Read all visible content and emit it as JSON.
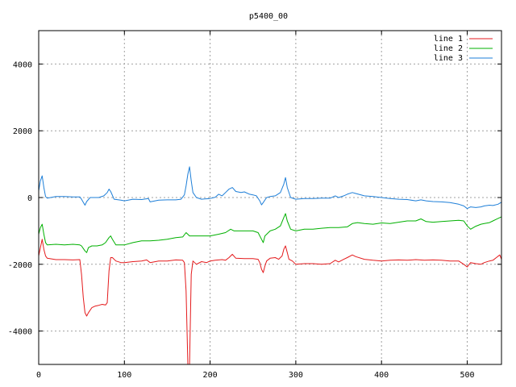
{
  "chart_data": {
    "type": "line",
    "title": "p5400_00",
    "xlabel": "",
    "ylabel": "",
    "xlim": [
      0,
      540
    ],
    "ylim": [
      -5000,
      5000
    ],
    "xticks": [
      0,
      100,
      200,
      300,
      400,
      500
    ],
    "yticks": [
      -4000,
      -2000,
      0,
      2000,
      4000
    ],
    "grid": true,
    "legend_position": "top-right",
    "series": [
      {
        "name": "line 1",
        "color": "#e41a1c",
        "points": [
          [
            0,
            -1750
          ],
          [
            2,
            -1500
          ],
          [
            4,
            -1250
          ],
          [
            6,
            -1550
          ],
          [
            8,
            -1750
          ],
          [
            10,
            -1820
          ],
          [
            20,
            -1860
          ],
          [
            30,
            -1860
          ],
          [
            40,
            -1870
          ],
          [
            48,
            -1860
          ],
          [
            50,
            -2300
          ],
          [
            52,
            -3000
          ],
          [
            54,
            -3450
          ],
          [
            56,
            -3550
          ],
          [
            58,
            -3450
          ],
          [
            62,
            -3300
          ],
          [
            66,
            -3250
          ],
          [
            70,
            -3230
          ],
          [
            74,
            -3200
          ],
          [
            78,
            -3220
          ],
          [
            80,
            -3150
          ],
          [
            82,
            -2200
          ],
          [
            84,
            -1800
          ],
          [
            86,
            -1800
          ],
          [
            90,
            -1900
          ],
          [
            96,
            -1950
          ],
          [
            100,
            -1950
          ],
          [
            110,
            -1920
          ],
          [
            120,
            -1900
          ],
          [
            126,
            -1870
          ],
          [
            130,
            -1950
          ],
          [
            140,
            -1900
          ],
          [
            150,
            -1900
          ],
          [
            160,
            -1870
          ],
          [
            168,
            -1880
          ],
          [
            170,
            -1950
          ],
          [
            172,
            -2800
          ],
          [
            174,
            -5000
          ],
          [
            176,
            -5000
          ],
          [
            178,
            -2300
          ],
          [
            180,
            -1900
          ],
          [
            184,
            -2000
          ],
          [
            190,
            -1920
          ],
          [
            196,
            -1950
          ],
          [
            200,
            -1900
          ],
          [
            206,
            -1880
          ],
          [
            210,
            -1870
          ],
          [
            214,
            -1860
          ],
          [
            218,
            -1880
          ],
          [
            222,
            -1800
          ],
          [
            226,
            -1700
          ],
          [
            230,
            -1820
          ],
          [
            240,
            -1830
          ],
          [
            250,
            -1830
          ],
          [
            256,
            -1850
          ],
          [
            258,
            -1950
          ],
          [
            260,
            -2150
          ],
          [
            262,
            -2250
          ],
          [
            264,
            -2050
          ],
          [
            266,
            -1900
          ],
          [
            270,
            -1820
          ],
          [
            276,
            -1800
          ],
          [
            280,
            -1850
          ],
          [
            284,
            -1750
          ],
          [
            286,
            -1550
          ],
          [
            288,
            -1450
          ],
          [
            290,
            -1650
          ],
          [
            292,
            -1850
          ],
          [
            296,
            -1900
          ],
          [
            300,
            -2000
          ],
          [
            310,
            -1980
          ],
          [
            320,
            -1980
          ],
          [
            330,
            -2000
          ],
          [
            340,
            -1980
          ],
          [
            346,
            -1880
          ],
          [
            350,
            -1930
          ],
          [
            356,
            -1850
          ],
          [
            360,
            -1800
          ],
          [
            366,
            -1720
          ],
          [
            370,
            -1770
          ],
          [
            380,
            -1850
          ],
          [
            390,
            -1880
          ],
          [
            400,
            -1900
          ],
          [
            410,
            -1880
          ],
          [
            420,
            -1870
          ],
          [
            430,
            -1880
          ],
          [
            440,
            -1860
          ],
          [
            450,
            -1880
          ],
          [
            460,
            -1870
          ],
          [
            470,
            -1880
          ],
          [
            480,
            -1900
          ],
          [
            490,
            -1900
          ],
          [
            496,
            -2000
          ],
          [
            500,
            -2080
          ],
          [
            504,
            -1950
          ],
          [
            510,
            -1980
          ],
          [
            516,
            -2000
          ],
          [
            520,
            -1950
          ],
          [
            526,
            -1900
          ],
          [
            530,
            -1880
          ],
          [
            534,
            -1800
          ],
          [
            538,
            -1720
          ],
          [
            540,
            -1850
          ]
        ]
      },
      {
        "name": "line 2",
        "color": "#00b000",
        "points": [
          [
            0,
            -1100
          ],
          [
            2,
            -900
          ],
          [
            4,
            -800
          ],
          [
            6,
            -1100
          ],
          [
            8,
            -1350
          ],
          [
            10,
            -1420
          ],
          [
            20,
            -1400
          ],
          [
            30,
            -1420
          ],
          [
            40,
            -1400
          ],
          [
            48,
            -1420
          ],
          [
            50,
            -1450
          ],
          [
            54,
            -1600
          ],
          [
            56,
            -1650
          ],
          [
            58,
            -1500
          ],
          [
            62,
            -1450
          ],
          [
            68,
            -1450
          ],
          [
            74,
            -1420
          ],
          [
            78,
            -1350
          ],
          [
            82,
            -1200
          ],
          [
            84,
            -1150
          ],
          [
            86,
            -1250
          ],
          [
            90,
            -1420
          ],
          [
            100,
            -1420
          ],
          [
            110,
            -1350
          ],
          [
            120,
            -1300
          ],
          [
            130,
            -1300
          ],
          [
            140,
            -1280
          ],
          [
            150,
            -1250
          ],
          [
            160,
            -1200
          ],
          [
            168,
            -1180
          ],
          [
            172,
            -1050
          ],
          [
            176,
            -1150
          ],
          [
            180,
            -1150
          ],
          [
            190,
            -1150
          ],
          [
            200,
            -1150
          ],
          [
            210,
            -1100
          ],
          [
            218,
            -1050
          ],
          [
            224,
            -950
          ],
          [
            228,
            -1000
          ],
          [
            236,
            -1000
          ],
          [
            244,
            -1000
          ],
          [
            250,
            -1000
          ],
          [
            256,
            -1050
          ],
          [
            260,
            -1250
          ],
          [
            262,
            -1350
          ],
          [
            264,
            -1150
          ],
          [
            270,
            -1000
          ],
          [
            276,
            -950
          ],
          [
            282,
            -850
          ],
          [
            286,
            -600
          ],
          [
            288,
            -480
          ],
          [
            290,
            -700
          ],
          [
            294,
            -950
          ],
          [
            300,
            -1000
          ],
          [
            310,
            -950
          ],
          [
            320,
            -950
          ],
          [
            330,
            -920
          ],
          [
            340,
            -900
          ],
          [
            350,
            -900
          ],
          [
            360,
            -880
          ],
          [
            366,
            -780
          ],
          [
            372,
            -750
          ],
          [
            380,
            -780
          ],
          [
            390,
            -800
          ],
          [
            400,
            -760
          ],
          [
            410,
            -780
          ],
          [
            420,
            -740
          ],
          [
            430,
            -700
          ],
          [
            440,
            -700
          ],
          [
            446,
            -640
          ],
          [
            452,
            -720
          ],
          [
            460,
            -740
          ],
          [
            470,
            -720
          ],
          [
            480,
            -700
          ],
          [
            490,
            -680
          ],
          [
            496,
            -700
          ],
          [
            500,
            -850
          ],
          [
            504,
            -950
          ],
          [
            510,
            -860
          ],
          [
            516,
            -800
          ],
          [
            520,
            -780
          ],
          [
            526,
            -750
          ],
          [
            530,
            -700
          ],
          [
            534,
            -650
          ],
          [
            540,
            -580
          ]
        ]
      },
      {
        "name": "line 3",
        "color": "#1e7fd8",
        "points": [
          [
            0,
            200
          ],
          [
            2,
            500
          ],
          [
            4,
            650
          ],
          [
            6,
            300
          ],
          [
            8,
            30
          ],
          [
            10,
            -20
          ],
          [
            20,
            30
          ],
          [
            30,
            30
          ],
          [
            40,
            20
          ],
          [
            48,
            20
          ],
          [
            50,
            -50
          ],
          [
            54,
            -230
          ],
          [
            56,
            -120
          ],
          [
            60,
            0
          ],
          [
            70,
            0
          ],
          [
            76,
            50
          ],
          [
            80,
            150
          ],
          [
            82,
            250
          ],
          [
            84,
            180
          ],
          [
            88,
            -50
          ],
          [
            96,
            -80
          ],
          [
            100,
            -100
          ],
          [
            110,
            -50
          ],
          [
            120,
            -60
          ],
          [
            128,
            -30
          ],
          [
            130,
            -130
          ],
          [
            140,
            -80
          ],
          [
            150,
            -70
          ],
          [
            160,
            -70
          ],
          [
            166,
            -50
          ],
          [
            170,
            80
          ],
          [
            172,
            350
          ],
          [
            174,
            700
          ],
          [
            176,
            920
          ],
          [
            178,
            500
          ],
          [
            180,
            150
          ],
          [
            184,
            0
          ],
          [
            190,
            -50
          ],
          [
            200,
            -30
          ],
          [
            206,
            10
          ],
          [
            210,
            100
          ],
          [
            214,
            50
          ],
          [
            218,
            150
          ],
          [
            222,
            250
          ],
          [
            226,
            300
          ],
          [
            230,
            180
          ],
          [
            236,
            150
          ],
          [
            240,
            170
          ],
          [
            246,
            100
          ],
          [
            250,
            80
          ],
          [
            254,
            50
          ],
          [
            258,
            -100
          ],
          [
            260,
            -220
          ],
          [
            262,
            -150
          ],
          [
            266,
            0
          ],
          [
            270,
            30
          ],
          [
            276,
            50
          ],
          [
            282,
            150
          ],
          [
            286,
            400
          ],
          [
            288,
            600
          ],
          [
            290,
            300
          ],
          [
            294,
            0
          ],
          [
            300,
            -50
          ],
          [
            310,
            -30
          ],
          [
            320,
            -30
          ],
          [
            330,
            -20
          ],
          [
            340,
            -20
          ],
          [
            346,
            50
          ],
          [
            350,
            0
          ],
          [
            356,
            50
          ],
          [
            360,
            100
          ],
          [
            366,
            150
          ],
          [
            370,
            120
          ],
          [
            380,
            50
          ],
          [
            390,
            30
          ],
          [
            400,
            0
          ],
          [
            410,
            -30
          ],
          [
            420,
            -50
          ],
          [
            430,
            -60
          ],
          [
            440,
            -100
          ],
          [
            446,
            -70
          ],
          [
            452,
            -100
          ],
          [
            460,
            -120
          ],
          [
            470,
            -130
          ],
          [
            480,
            -150
          ],
          [
            490,
            -200
          ],
          [
            496,
            -250
          ],
          [
            500,
            -330
          ],
          [
            504,
            -280
          ],
          [
            510,
            -300
          ],
          [
            516,
            -280
          ],
          [
            520,
            -250
          ],
          [
            526,
            -230
          ],
          [
            530,
            -240
          ],
          [
            536,
            -200
          ],
          [
            540,
            -140
          ]
        ]
      }
    ]
  }
}
